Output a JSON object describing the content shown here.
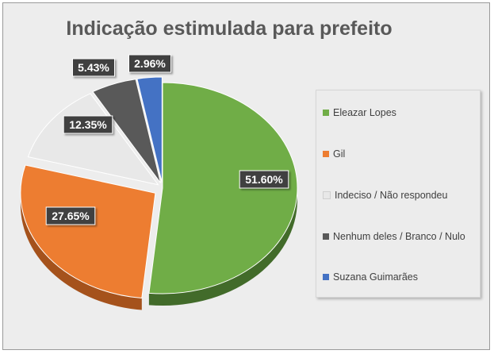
{
  "chart_data": {
    "type": "pie",
    "title": "Indicação estimulada para prefeito",
    "categories": [
      "Eleazar Lopes",
      "Gil",
      "Indeciso / Não respondeu",
      "Nenhum deles / Branco / Nulo",
      "Suzana Guimarães"
    ],
    "values": [
      51.6,
      27.65,
      12.35,
      5.43,
      2.96
    ],
    "data_labels": [
      "51.60%",
      "27.65%",
      "12.35%",
      "5.43%",
      "2.96%"
    ],
    "colors": [
      "#70ad47",
      "#ed7d31",
      "#e8e8e8",
      "#595959",
      "#4472c4"
    ],
    "legend_position": "right"
  }
}
